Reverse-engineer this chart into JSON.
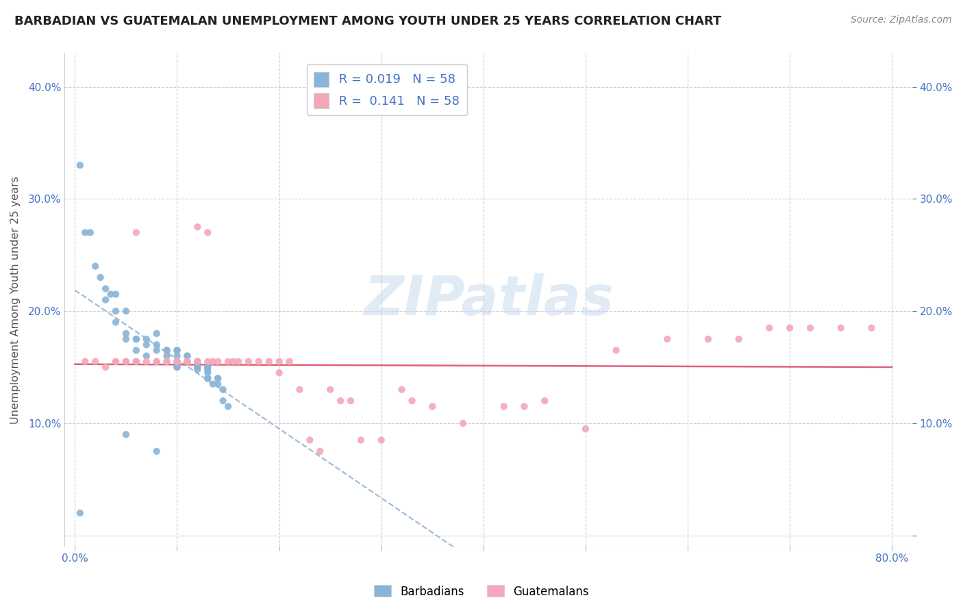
{
  "title": "BARBADIAN VS GUATEMALAN UNEMPLOYMENT AMONG YOUTH UNDER 25 YEARS CORRELATION CHART",
  "source": "Source: ZipAtlas.com",
  "ylabel": "Unemployment Among Youth under 25 years",
  "xlim": [
    -0.01,
    0.82
  ],
  "ylim": [
    -0.01,
    0.43
  ],
  "xticks": [
    0.0,
    0.1,
    0.2,
    0.3,
    0.4,
    0.5,
    0.6,
    0.7,
    0.8
  ],
  "xticklabels_show": [
    "0.0%",
    "",
    "",
    "",
    "",
    "",
    "",
    "",
    "80.0%"
  ],
  "yticks": [
    0.0,
    0.1,
    0.2,
    0.3,
    0.4
  ],
  "yticklabels_left": [
    "",
    "10.0%",
    "20.0%",
    "30.0%",
    "40.0%"
  ],
  "yticklabels_right": [
    "",
    "10.0%",
    "20.0%",
    "30.0%",
    "40.0%"
  ],
  "legend_R_blue": "0.019",
  "legend_N_blue": "58",
  "legend_R_pink": "0.141",
  "legend_N_pink": "58",
  "blue_color": "#8ab4d8",
  "pink_color": "#f4a7b9",
  "blue_line_color": "#a0bcd8",
  "pink_line_color": "#e0607a",
  "watermark": "ZIPatlas",
  "watermark_color": "#c5d8ed",
  "blue_scatter_x": [
    0.005,
    0.01,
    0.015,
    0.02,
    0.025,
    0.03,
    0.03,
    0.035,
    0.04,
    0.04,
    0.04,
    0.05,
    0.05,
    0.05,
    0.06,
    0.06,
    0.06,
    0.06,
    0.07,
    0.07,
    0.07,
    0.08,
    0.08,
    0.08,
    0.09,
    0.09,
    0.09,
    0.1,
    0.1,
    0.1,
    0.1,
    0.1,
    0.1,
    0.1,
    0.11,
    0.11,
    0.11,
    0.12,
    0.12,
    0.12,
    0.12,
    0.12,
    0.13,
    0.13,
    0.13,
    0.13,
    0.13,
    0.13,
    0.135,
    0.14,
    0.14,
    0.14,
    0.145,
    0.145,
    0.15,
    0.05,
    0.08,
    0.005
  ],
  "blue_scatter_y": [
    0.33,
    0.27,
    0.27,
    0.24,
    0.23,
    0.22,
    0.21,
    0.215,
    0.215,
    0.2,
    0.19,
    0.2,
    0.18,
    0.175,
    0.175,
    0.175,
    0.165,
    0.155,
    0.175,
    0.17,
    0.16,
    0.18,
    0.17,
    0.165,
    0.165,
    0.165,
    0.16,
    0.165,
    0.165,
    0.16,
    0.155,
    0.155,
    0.15,
    0.15,
    0.16,
    0.16,
    0.155,
    0.155,
    0.155,
    0.15,
    0.15,
    0.148,
    0.15,
    0.15,
    0.148,
    0.145,
    0.14,
    0.14,
    0.135,
    0.14,
    0.14,
    0.135,
    0.13,
    0.12,
    0.115,
    0.09,
    0.075,
    0.02
  ],
  "pink_scatter_x": [
    0.01,
    0.02,
    0.03,
    0.04,
    0.04,
    0.05,
    0.05,
    0.06,
    0.06,
    0.07,
    0.08,
    0.08,
    0.09,
    0.09,
    0.1,
    0.1,
    0.11,
    0.11,
    0.12,
    0.12,
    0.13,
    0.13,
    0.135,
    0.14,
    0.15,
    0.155,
    0.16,
    0.17,
    0.18,
    0.19,
    0.2,
    0.2,
    0.21,
    0.22,
    0.23,
    0.24,
    0.25,
    0.26,
    0.27,
    0.28,
    0.3,
    0.32,
    0.33,
    0.35,
    0.38,
    0.42,
    0.44,
    0.46,
    0.5,
    0.53,
    0.58,
    0.62,
    0.65,
    0.68,
    0.7,
    0.72,
    0.75,
    0.78
  ],
  "pink_scatter_y": [
    0.155,
    0.155,
    0.15,
    0.155,
    0.155,
    0.155,
    0.155,
    0.155,
    0.27,
    0.155,
    0.155,
    0.155,
    0.155,
    0.155,
    0.155,
    0.155,
    0.155,
    0.155,
    0.155,
    0.275,
    0.155,
    0.27,
    0.155,
    0.155,
    0.155,
    0.155,
    0.155,
    0.155,
    0.155,
    0.155,
    0.145,
    0.155,
    0.155,
    0.13,
    0.085,
    0.075,
    0.13,
    0.12,
    0.12,
    0.085,
    0.085,
    0.13,
    0.12,
    0.115,
    0.1,
    0.115,
    0.115,
    0.12,
    0.095,
    0.165,
    0.175,
    0.175,
    0.175,
    0.185,
    0.185,
    0.185,
    0.185,
    0.185
  ]
}
